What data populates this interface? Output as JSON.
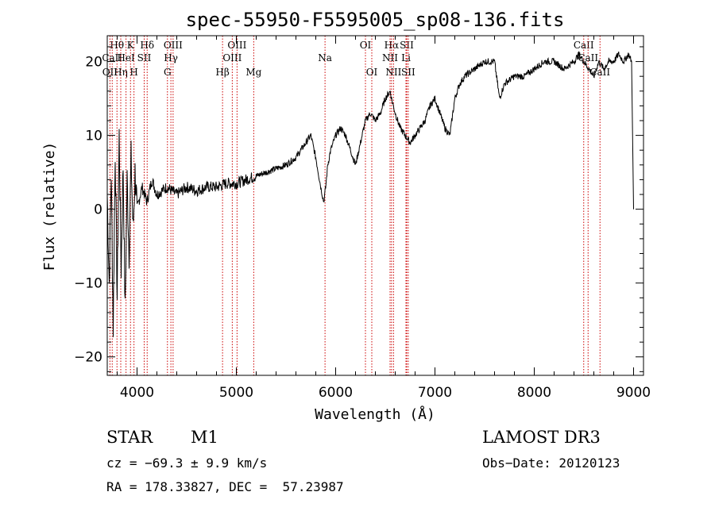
{
  "chart_data": {
    "type": "line",
    "title": "spec-55950-F5595005_sp08-136.fits",
    "xlabel": "Wavelength (Å)",
    "ylabel": "Flux (relative)",
    "xlim": [
      3700,
      9100
    ],
    "ylim": [
      -22.5,
      23.5
    ],
    "xticks": [
      4000,
      5000,
      6000,
      7000,
      8000,
      9000
    ],
    "yticks": [
      -20,
      -10,
      0,
      10,
      20
    ],
    "series": [
      {
        "name": "spectrum",
        "x": [
          3700,
          3720,
          3740,
          3760,
          3780,
          3800,
          3820,
          3840,
          3860,
          3880,
          3900,
          3920,
          3940,
          3960,
          3980,
          4000,
          4050,
          4100,
          4150,
          4200,
          4300,
          4400,
          4500,
          4600,
          4700,
          4800,
          4900,
          5000,
          5100,
          5200,
          5300,
          5400,
          5500,
          5600,
          5700,
          5750,
          5800,
          5850,
          5880,
          5900,
          5920,
          5950,
          6000,
          6050,
          6100,
          6150,
          6200,
          6250,
          6300,
          6350,
          6400,
          6450,
          6500,
          6550,
          6563,
          6600,
          6650,
          6700,
          6750,
          6800,
          6850,
          6900,
          6950,
          7000,
          7050,
          7100,
          7150,
          7200,
          7250,
          7300,
          7400,
          7500,
          7600,
          7650,
          7700,
          7800,
          7900,
          8000,
          8100,
          8200,
          8300,
          8400,
          8450,
          8500,
          8550,
          8600,
          8650,
          8700,
          8750,
          8800,
          8850,
          8900,
          8950,
          8980,
          9000
        ],
        "y": [
          2,
          -10,
          5,
          -16,
          8,
          -12,
          10,
          -8,
          6,
          -14,
          4,
          -6,
          7,
          -3,
          5,
          0,
          3,
          1,
          4,
          2,
          3,
          2,
          3,
          2.5,
          3,
          3,
          3.5,
          3.5,
          4,
          4.5,
          5,
          5.5,
          6,
          7,
          9,
          10,
          7,
          3,
          1,
          3,
          6,
          8,
          10,
          11,
          10,
          8,
          6,
          9,
          12,
          13,
          12,
          13,
          15,
          16,
          15,
          13,
          11,
          10,
          9,
          10,
          11,
          12,
          14,
          15,
          13,
          11,
          10,
          15,
          17,
          18,
          19,
          20,
          20,
          15,
          17,
          18,
          18,
          19,
          20,
          20,
          19,
          20,
          21,
          20,
          19,
          18,
          20,
          19,
          20,
          20,
          21,
          20,
          21,
          20,
          0
        ]
      }
    ],
    "spectral_lines": [
      {
        "label": "Hθ",
        "x": 3798,
        "row": 1
      },
      {
        "label": "CaII",
        "x": 3750,
        "row": 2
      },
      {
        "label": "OII",
        "x": 3727,
        "row": 3
      },
      {
        "label": "Hη",
        "x": 3836,
        "row": 3
      },
      {
        "label": "K",
        "x": 3934,
        "row": 1
      },
      {
        "label": "HeI",
        "x": 3889,
        "row": 2
      },
      {
        "label": "H",
        "x": 3969,
        "row": 3
      },
      {
        "label": "Hδ",
        "x": 4102,
        "row": 1
      },
      {
        "label": "SII",
        "x": 4072,
        "row": 2
      },
      {
        "label": "OIII",
        "x": 4363,
        "row": 1
      },
      {
        "label": "Hγ",
        "x": 4341,
        "row": 2
      },
      {
        "label": "G",
        "x": 4306,
        "row": 3
      },
      {
        "label": "OIII",
        "x": 5007,
        "row": 1
      },
      {
        "label": "OIII",
        "x": 4959,
        "row": 2
      },
      {
        "label": "Hβ",
        "x": 4861,
        "row": 3
      },
      {
        "label": "Mg",
        "x": 5175,
        "row": 3
      },
      {
        "label": "Na",
        "x": 5893,
        "row": 2
      },
      {
        "label": "OI",
        "x": 6300,
        "row": 1
      },
      {
        "label": "OI",
        "x": 6364,
        "row": 3
      },
      {
        "label": "Hα",
        "x": 6563,
        "row": 1
      },
      {
        "label": "SII",
        "x": 6716,
        "row": 1
      },
      {
        "label": "NII",
        "x": 6548,
        "row": 2
      },
      {
        "label": "Li",
        "x": 6708,
        "row": 2
      },
      {
        "label": "NII",
        "x": 6583,
        "row": 3
      },
      {
        "label": "SII",
        "x": 6731,
        "row": 3
      },
      {
        "label": "CaII",
        "x": 8498,
        "row": 1
      },
      {
        "label": "CaII",
        "x": 8542,
        "row": 2
      },
      {
        "label": "CaII",
        "x": 8662,
        "row": 3
      }
    ]
  },
  "info": {
    "object_class": "STAR",
    "subclass": "M1",
    "survey": "LAMOST DR3",
    "cz": "cz = −69.3 ± 9.9 km/s",
    "obs_date": "Obs−Date: 20120123",
    "coords": "RA = 178.33827, DEC =  57.23987"
  },
  "colors": {
    "axis": "#000000",
    "spectrum": "#000000",
    "lines": "#cc0000"
  }
}
